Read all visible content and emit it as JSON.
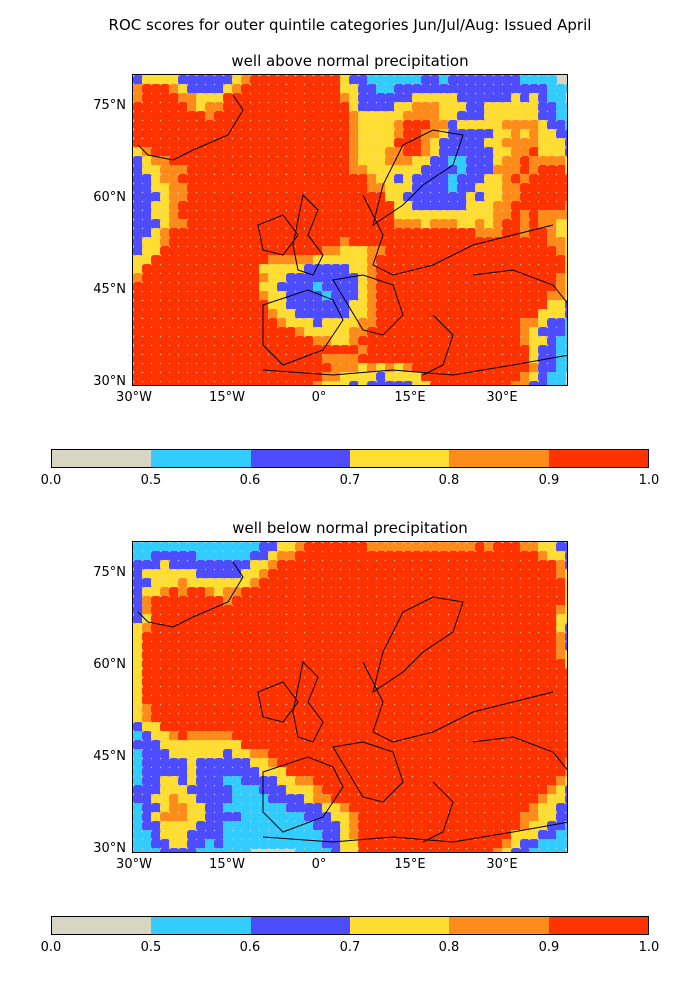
{
  "title": "ROC scores for outer quintile categories Jun/Jul/Aug: Issued April",
  "colorbar": {
    "colors": [
      "#d6d6c2",
      "#33ccff",
      "#4d4dff",
      "#ffdd33",
      "#ff8c1a",
      "#ff3300"
    ],
    "bounds": [
      "0.0",
      "0.5",
      "0.6",
      "0.7",
      "0.8",
      "0.9",
      "1.0"
    ]
  },
  "axes": {
    "lat_labels": [
      "75°N",
      "60°N",
      "45°N",
      "30°N"
    ],
    "lon_labels": [
      "30°W",
      "15°W",
      "0°",
      "15°E",
      "30°E"
    ]
  },
  "panels": [
    {
      "subtitle": "well above normal precipitation"
    },
    {
      "subtitle": "well below normal precipitation"
    }
  ]
}
